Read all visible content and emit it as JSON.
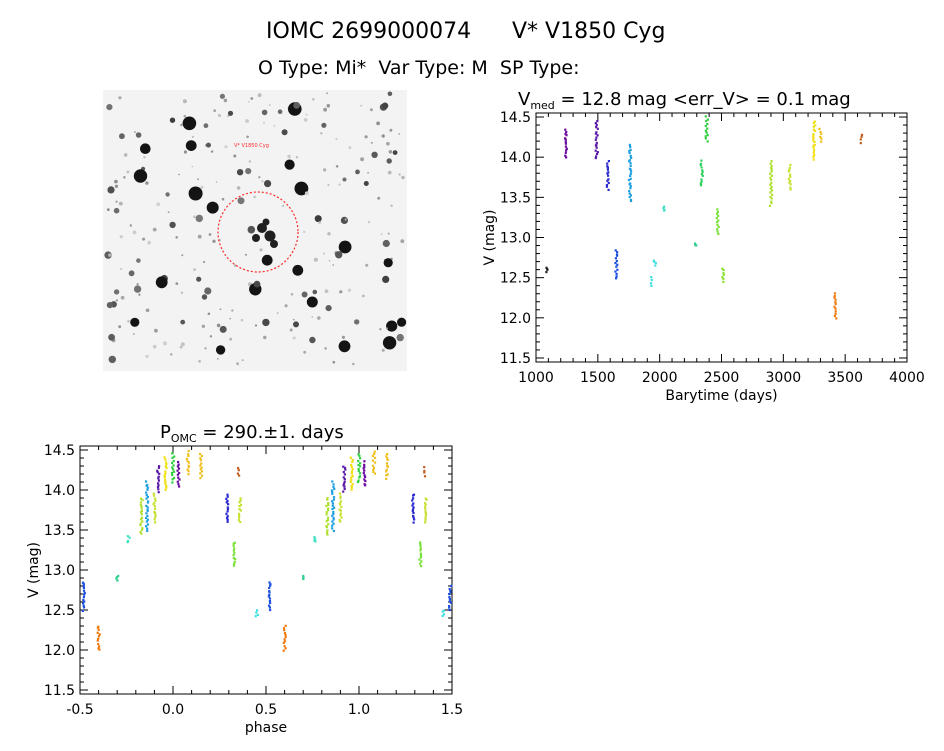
{
  "header": {
    "title_left": "IOMC 2699000074",
    "title_right": "V* V1850 Cyg",
    "subtitle": "O Type: Mi*  Var Type: M  SP Type:"
  },
  "image_panel": {
    "marker_label": "V* V1850 Cyg",
    "corner_labels": [
      "",
      "",
      ""
    ]
  },
  "colors": {
    "circle": "#ff2a2a",
    "axis": "#000000"
  },
  "chart_data": [
    {
      "id": "lightcurve",
      "type": "scatter",
      "title_prefix": "V",
      "title_sub": "med",
      "title_rest": " = 12.8 mag <err_V> = 0.1 mag",
      "xlabel": "Barytime (days)",
      "ylabel": "V (mag)",
      "xlim": [
        1000,
        4000
      ],
      "ylim": [
        14.55,
        11.45
      ],
      "y_inverted": true,
      "xticks": [
        1000,
        1500,
        2000,
        2500,
        3000,
        3500,
        4000
      ],
      "yticks": [
        11.5,
        12.0,
        12.5,
        13.0,
        13.5,
        14.0,
        14.5
      ],
      "grid": false,
      "groups": [
        {
          "x": 1090,
          "y": [
            12.58,
            12.62
          ],
          "color": "#222222"
        },
        {
          "x": 1240,
          "y": [
            14.0,
            14.35
          ],
          "color": "#6a0aa0"
        },
        {
          "x": 1490,
          "y": [
            13.98,
            14.45
          ],
          "color": "#5a1aa8"
        },
        {
          "x": 1580,
          "y": [
            13.6,
            13.95
          ],
          "color": "#2a2ad0"
        },
        {
          "x": 1650,
          "y": [
            12.5,
            12.85
          ],
          "color": "#1e50e0"
        },
        {
          "x": 1760,
          "y": [
            13.45,
            14.15
          ],
          "color": "#1fa0e0"
        },
        {
          "x": 1930,
          "y": [
            12.4,
            12.5
          ],
          "color": "#40e0e0"
        },
        {
          "x": 1960,
          "y": [
            12.65,
            12.72
          ],
          "color": "#40e0e0"
        },
        {
          "x": 2030,
          "y": [
            13.33,
            13.38
          ],
          "color": "#40e0c0"
        },
        {
          "x": 2290,
          "y": [
            12.9,
            12.93
          ],
          "color": "#30d090"
        },
        {
          "x": 2340,
          "y": [
            13.65,
            13.95
          ],
          "color": "#30d060"
        },
        {
          "x": 2380,
          "y": [
            14.2,
            14.5
          ],
          "color": "#30d040"
        },
        {
          "x": 2470,
          "y": [
            13.05,
            13.35
          ],
          "color": "#7ae03a"
        },
        {
          "x": 2510,
          "y": [
            12.45,
            12.62
          ],
          "color": "#8ae030"
        },
        {
          "x": 2900,
          "y": [
            13.4,
            13.95
          ],
          "color": "#b0e030"
        },
        {
          "x": 3050,
          "y": [
            13.6,
            13.9
          ],
          "color": "#c8e030"
        },
        {
          "x": 3250,
          "y": [
            13.98,
            14.45
          ],
          "color": "#f0e010"
        },
        {
          "x": 3300,
          "y": [
            14.2,
            14.35
          ],
          "color": "#f0c020"
        },
        {
          "x": 3420,
          "y": [
            12.0,
            12.3
          ],
          "color": "#f07a10"
        },
        {
          "x": 3630,
          "y": [
            14.18,
            14.28
          ],
          "color": "#c06020"
        }
      ]
    },
    {
      "id": "phased",
      "type": "scatter",
      "title_prefix": "P",
      "title_sub": "OMC",
      "title_rest": " = 290.±1. days",
      "xlabel": "phase",
      "ylabel": "V (mag)",
      "xlim": [
        -0.5,
        1.5
      ],
      "ylim": [
        14.55,
        11.45
      ],
      "y_inverted": true,
      "xticks": [
        -0.5,
        0.0,
        0.5,
        1.0,
        1.5
      ],
      "yticks": [
        11.5,
        12.0,
        12.5,
        13.0,
        13.5,
        14.0,
        14.5
      ],
      "grid": false,
      "groups": [
        {
          "x": -0.48,
          "y": [
            12.5,
            12.85
          ],
          "color": "#1e50e0"
        },
        {
          "x": -0.4,
          "y": [
            12.0,
            12.3
          ],
          "color": "#f07a10"
        },
        {
          "x": -0.3,
          "y": [
            12.88,
            12.92
          ],
          "color": "#30d090"
        },
        {
          "x": -0.24,
          "y": [
            13.35,
            13.42
          ],
          "color": "#40e0c0"
        },
        {
          "x": -0.17,
          "y": [
            13.45,
            13.9
          ],
          "color": "#b0e030"
        },
        {
          "x": -0.14,
          "y": [
            13.5,
            14.1
          ],
          "color": "#1fa0e0"
        },
        {
          "x": -0.1,
          "y": [
            13.6,
            13.95
          ],
          "color": "#c8e030"
        },
        {
          "x": -0.08,
          "y": [
            13.98,
            14.3
          ],
          "color": "#5a1aa8"
        },
        {
          "x": -0.04,
          "y": [
            14.0,
            14.4
          ],
          "color": "#f0e010"
        },
        {
          "x": 0.0,
          "y": [
            14.1,
            14.45
          ],
          "color": "#30d040"
        },
        {
          "x": 0.03,
          "y": [
            14.05,
            14.35
          ],
          "color": "#6a0aa0"
        },
        {
          "x": 0.08,
          "y": [
            14.2,
            14.48
          ],
          "color": "#f0c020"
        },
        {
          "x": 0.15,
          "y": [
            14.15,
            14.45
          ],
          "color": "#f0c020"
        },
        {
          "x": 0.29,
          "y": [
            13.6,
            13.95
          ],
          "color": "#2a2ad0"
        },
        {
          "x": 0.33,
          "y": [
            13.05,
            13.35
          ],
          "color": "#7ae03a"
        },
        {
          "x": 0.36,
          "y": [
            13.6,
            13.9
          ],
          "color": "#c8e030"
        },
        {
          "x": 0.35,
          "y": [
            14.18,
            14.28
          ],
          "color": "#c06020"
        },
        {
          "x": 0.45,
          "y": [
            12.42,
            12.5
          ],
          "color": "#40e0e0"
        },
        {
          "x": 0.52,
          "y": [
            12.5,
            12.85
          ],
          "color": "#1e50e0"
        },
        {
          "x": 0.6,
          "y": [
            12.0,
            12.3
          ],
          "color": "#f07a10"
        },
        {
          "x": 0.7,
          "y": [
            12.88,
            12.92
          ],
          "color": "#30d090"
        },
        {
          "x": 0.76,
          "y": [
            13.35,
            13.42
          ],
          "color": "#40e0c0"
        },
        {
          "x": 0.83,
          "y": [
            13.45,
            13.9
          ],
          "color": "#b0e030"
        },
        {
          "x": 0.86,
          "y": [
            13.5,
            14.1
          ],
          "color": "#1fa0e0"
        },
        {
          "x": 0.9,
          "y": [
            13.6,
            13.95
          ],
          "color": "#c8e030"
        },
        {
          "x": 0.92,
          "y": [
            13.98,
            14.3
          ],
          "color": "#5a1aa8"
        },
        {
          "x": 0.96,
          "y": [
            14.0,
            14.4
          ],
          "color": "#f0e010"
        },
        {
          "x": 1.0,
          "y": [
            14.1,
            14.45
          ],
          "color": "#30d040"
        },
        {
          "x": 1.03,
          "y": [
            14.05,
            14.35
          ],
          "color": "#6a0aa0"
        },
        {
          "x": 1.08,
          "y": [
            14.2,
            14.48
          ],
          "color": "#f0c020"
        },
        {
          "x": 1.15,
          "y": [
            14.15,
            14.45
          ],
          "color": "#f0c020"
        },
        {
          "x": 1.29,
          "y": [
            13.6,
            13.95
          ],
          "color": "#2a2ad0"
        },
        {
          "x": 1.33,
          "y": [
            13.05,
            13.35
          ],
          "color": "#7ae03a"
        },
        {
          "x": 1.36,
          "y": [
            13.6,
            13.9
          ],
          "color": "#c8e030"
        },
        {
          "x": 1.35,
          "y": [
            14.18,
            14.28
          ],
          "color": "#c06020"
        },
        {
          "x": 1.45,
          "y": [
            12.42,
            12.5
          ],
          "color": "#40e0e0"
        },
        {
          "x": 1.49,
          "y": [
            12.5,
            12.8
          ],
          "color": "#1e50e0"
        }
      ]
    }
  ]
}
